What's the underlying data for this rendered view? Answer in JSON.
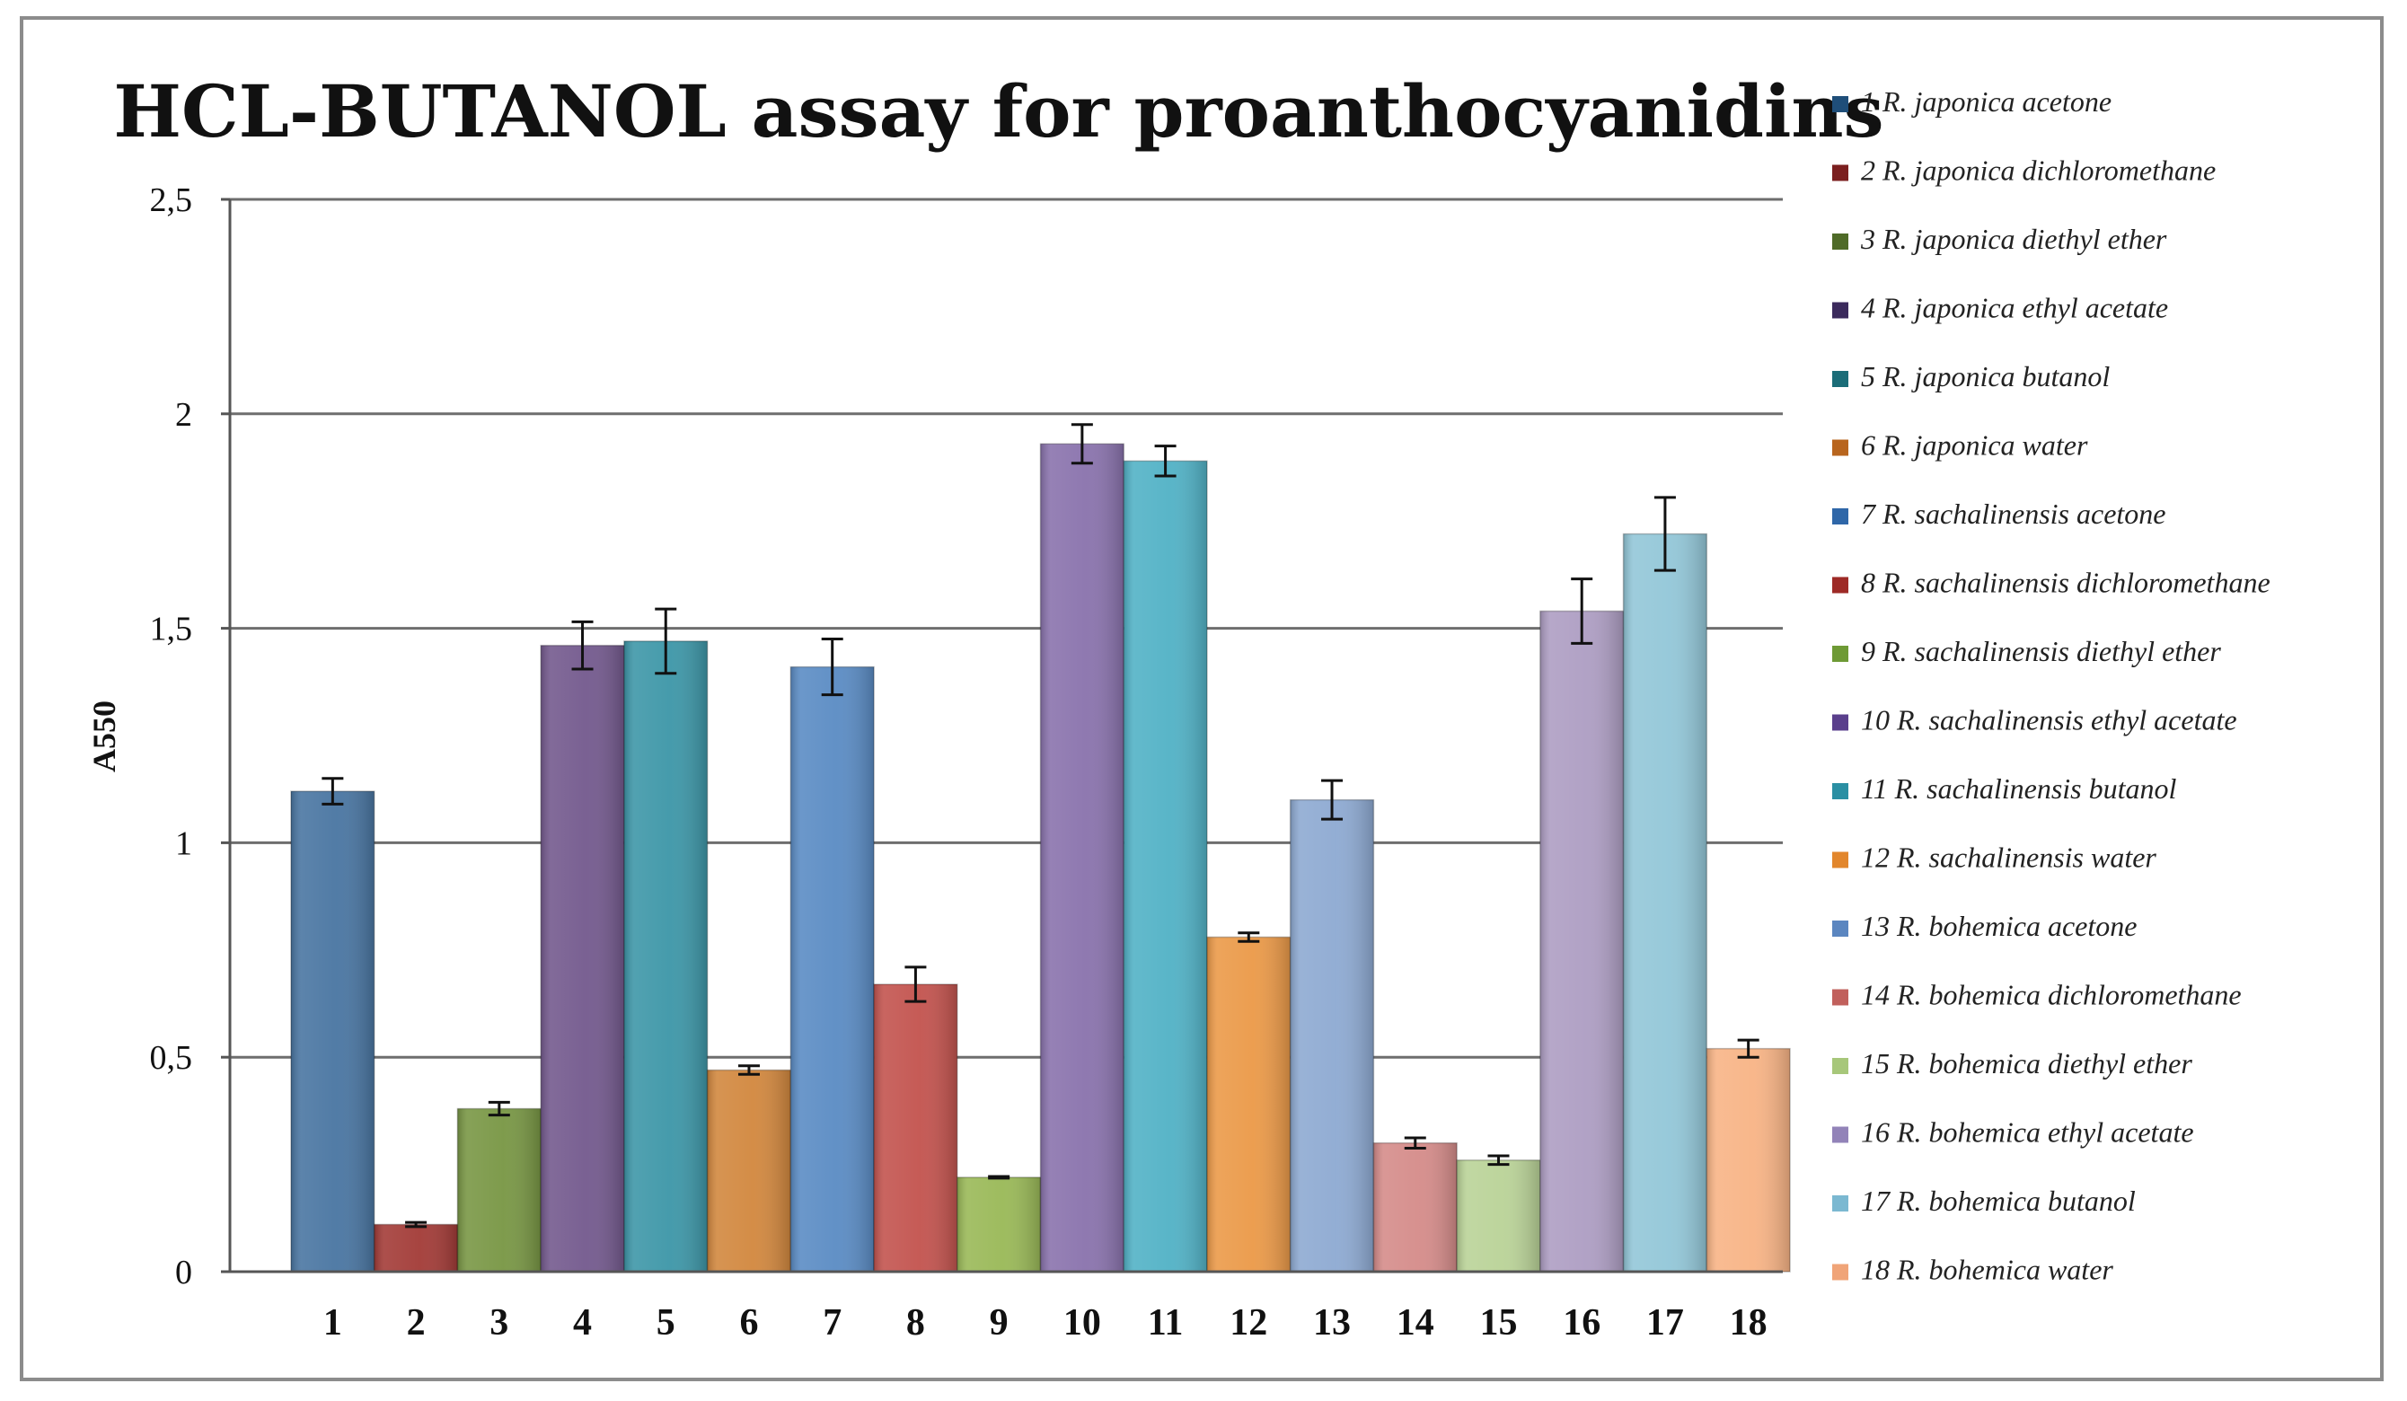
{
  "chart_data": {
    "type": "bar",
    "title": "HCL-BUTANOL assay for proanthocyanidins",
    "xlabel": "",
    "ylabel": "A550",
    "ylim": [
      0,
      2.5
    ],
    "yticks": [
      0,
      0.5,
      1,
      1.5,
      2,
      2.5
    ],
    "ytick_labels": [
      "0",
      "0,5",
      "1",
      "1,5",
      "2",
      "2,5"
    ],
    "grid": true,
    "legend_position": "right",
    "categories": [
      "1",
      "2",
      "3",
      "4",
      "5",
      "6",
      "7",
      "8",
      "9",
      "10",
      "11",
      "12",
      "13",
      "14",
      "15",
      "16",
      "17",
      "18"
    ],
    "values": [
      1.12,
      0.11,
      0.38,
      1.46,
      1.47,
      0.47,
      1.41,
      0.67,
      0.22,
      1.93,
      1.89,
      0.78,
      1.1,
      0.3,
      0.26,
      1.54,
      1.72,
      0.52
    ],
    "errors": [
      0.03,
      0.005,
      0.015,
      0.055,
      0.075,
      0.01,
      0.065,
      0.04,
      0.002,
      0.045,
      0.035,
      0.01,
      0.045,
      0.012,
      0.01,
      0.075,
      0.085,
      0.02
    ],
    "colors": [
      "#4a76a2",
      "#a33c38",
      "#799745",
      "#745a8e",
      "#3e97a8",
      "#d2883f",
      "#5b8cc4",
      "#c3544f",
      "#9ab958",
      "#8a73ad",
      "#52b2c6",
      "#eb9a49",
      "#8eaad2",
      "#d58c8a",
      "#bad398",
      "#ae9ec3",
      "#93c7d8",
      "#f8b486"
    ],
    "legend": [
      "1 R. japonica acetone",
      "2 R. japonica dichloromethane",
      "3 R. japonica diethyl ether",
      "4 R. japonica ethyl acetate",
      "5 R. japonica butanol",
      "6 R. japonica water",
      "7 R. sachalinensis acetone",
      "8 R. sachalinensis dichloromethane",
      "9 R. sachalinensis diethyl ether",
      "10 R. sachalinensis ethyl acetate",
      "11 R. sachalinensis butanol",
      "12 R. sachalinensis water",
      "13 R. bohemica acetone",
      "14 R. bohemica dichloromethane",
      "15 R. bohemica diethyl ether",
      "16 R. bohemica ethyl acetate",
      "17 R. bohemica butanol",
      "18 R. bohemica water"
    ],
    "legend_colors": [
      "#1f4e79",
      "#7b1f1f",
      "#4f6b28",
      "#3b2a5c",
      "#1b6d78",
      "#b8651e",
      "#2f67a8",
      "#9e2a26",
      "#6e9a35",
      "#5a3f8c",
      "#2a8fa3",
      "#e2862c",
      "#5b86c0",
      "#c1605c",
      "#a7c77a",
      "#9283b8",
      "#7bb8d1",
      "#f0a478"
    ]
  }
}
